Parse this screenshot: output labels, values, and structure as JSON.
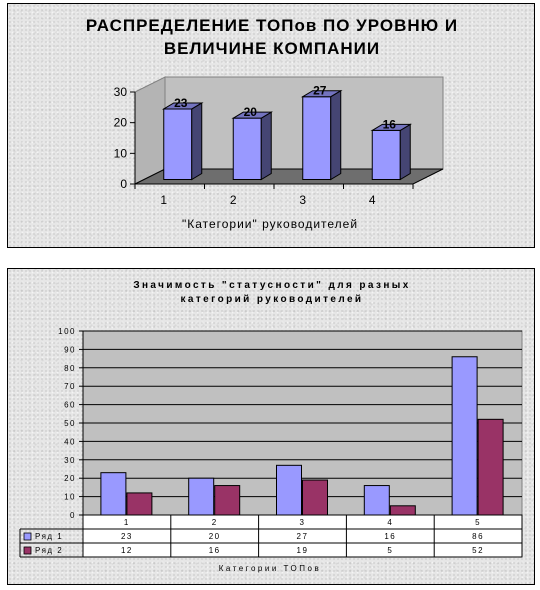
{
  "chart_data": [
    {
      "type": "bar",
      "title": "РАСПРЕДЕЛЕНИЕ ТОПов ПО УРОВНЮ И ВЕЛИЧИНЕ КОМПАНИИ",
      "title_lines": [
        "РАСПРЕДЕЛЕНИЕ ТОПов ПО УРОВНЮ И",
        "ВЕЛИЧИНЕ КОМПАНИИ"
      ],
      "xlabel": "\"Категории\" руководителей",
      "ylabel": "",
      "categories": [
        "1",
        "2",
        "3",
        "4"
      ],
      "values": [
        23,
        20,
        27,
        16
      ],
      "ylim": [
        0,
        30
      ],
      "yticks": [
        0,
        10,
        20,
        30
      ],
      "style": "3d",
      "grid": false,
      "bar_color": "#9999ff"
    },
    {
      "type": "bar",
      "title": "Значимость \"статусности\" для разных категорий руководителей",
      "title_lines": [
        "Значимость \"статусности\" для разных",
        "категорий руководителей"
      ],
      "xlabel": "Категории ТОПов",
      "ylabel": "",
      "categories": [
        "1",
        "2",
        "3",
        "4",
        "5"
      ],
      "series": [
        {
          "name": "Ряд 1",
          "values": [
            23,
            20,
            27,
            16,
            86
          ],
          "color": "#9999ff"
        },
        {
          "name": "Ряд 2",
          "values": [
            12,
            16,
            19,
            5,
            52
          ],
          "color": "#993366"
        }
      ],
      "ylim": [
        0,
        100
      ],
      "yticks": [
        0,
        10,
        20,
        30,
        40,
        50,
        60,
        70,
        80,
        90,
        100
      ],
      "grid": true,
      "legend": "data-table-bottom"
    }
  ]
}
